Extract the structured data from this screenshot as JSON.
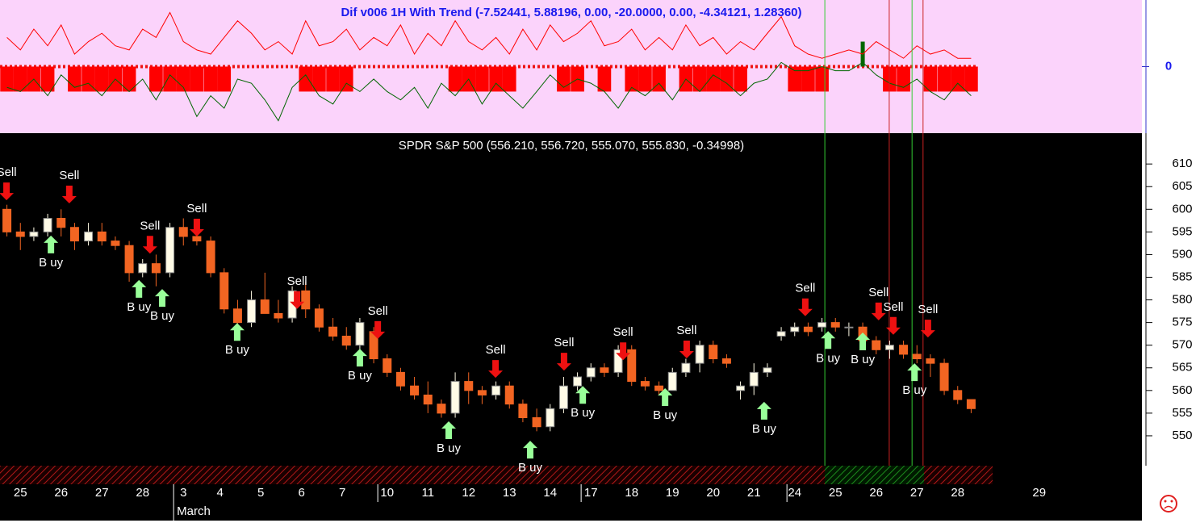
{
  "chart_data": [
    {
      "type": "indicator",
      "title": "Dif v006 1H With Trend (-7.52441, 5.88196, 0.00, -20.0000, 0.00, -4.34121, 1.28360)",
      "ylim": [
        -8,
        8
      ],
      "yticks": [
        0
      ],
      "xlim": [
        0,
        28.02
      ],
      "x": [
        0.17,
        0.5,
        0.83,
        1.17,
        1.5,
        1.83,
        2.17,
        2.5,
        2.83,
        3.17,
        3.5,
        3.83,
        4.17,
        4.5,
        4.83,
        5.17,
        5.5,
        5.83,
        6.17,
        6.5,
        6.83,
        7.17,
        7.5,
        7.83,
        8.17,
        8.5,
        8.83,
        9.17,
        9.5,
        9.83,
        10.17,
        10.5,
        10.83,
        11.17,
        11.5,
        11.83,
        12.17,
        12.5,
        12.83,
        13.17,
        13.5,
        13.83,
        14.17,
        14.5,
        14.83,
        15.17,
        15.5,
        15.83,
        16.17,
        16.5,
        16.83,
        17.17,
        17.5,
        17.83,
        18.17,
        18.5,
        18.83,
        19.17,
        19.5,
        19.83,
        20.17,
        20.5,
        20.83,
        21.17,
        21.5,
        21.83,
        22.17,
        22.5,
        22.83,
        23.17,
        23.5,
        23.83
      ],
      "trend": {
        "up_color": "#006600",
        "down_color": "#ff0000",
        "values": [
          -3,
          -3,
          -3,
          -3,
          0,
          -3,
          -3,
          -3,
          -3,
          -3,
          0,
          -3,
          -3,
          -3,
          -3,
          -3,
          -3,
          0,
          0,
          0,
          0,
          0,
          -3,
          -3,
          -3,
          -3,
          0,
          0,
          0,
          0,
          0,
          0,
          0,
          -3,
          -3,
          -3,
          -3,
          -3,
          0,
          0,
          0,
          -3,
          -3,
          0,
          -3,
          0,
          -3,
          -3,
          -3,
          0,
          -3,
          -3,
          -3,
          -3,
          -3,
          0,
          0,
          0,
          -3,
          -3,
          -3,
          0,
          0,
          3,
          0,
          -3,
          -3,
          0,
          -3,
          -3,
          -3,
          -3
        ]
      },
      "series": [
        {
          "color": "#ff0000",
          "values": [
            3.5,
            2.0,
            4.5,
            2.5,
            5.0,
            1.5,
            3.0,
            4.0,
            2.5,
            2.0,
            4.5,
            3.5,
            6.5,
            3.0,
            2.0,
            1.5,
            3.5,
            5.5,
            4.0,
            2.0,
            3.0,
            1.5,
            5.5,
            2.5,
            3.0,
            4.5,
            2.0,
            3.5,
            2.5,
            5.0,
            1.5,
            4.0,
            2.5,
            5.5,
            3.0,
            2.0,
            3.5,
            1.5,
            4.5,
            2.0,
            5.0,
            3.0,
            4.0,
            5.5,
            2.5,
            3.0,
            4.5,
            2.0,
            3.5,
            2.0,
            5.0,
            2.5,
            3.5,
            1.5,
            3.0,
            2.0,
            4.0,
            6.0,
            2.5,
            1.5,
            1.0,
            1.5,
            2.0,
            1.5,
            3.0,
            2.0,
            1.0,
            2.5,
            1.5,
            2.0,
            1.0,
            1.0
          ]
        },
        {
          "color": "#006600",
          "values": [
            -2.5,
            -3.0,
            -1.5,
            -3.5,
            -1.0,
            -2.5,
            -2.0,
            -3.5,
            -1.5,
            -3.0,
            -1.5,
            -4.0,
            -1.0,
            -2.5,
            -6.0,
            -3.5,
            -5.0,
            -1.5,
            -2.0,
            -4.0,
            -6.5,
            -2.5,
            -1.0,
            -3.5,
            -4.5,
            -2.0,
            -3.0,
            -1.5,
            -3.0,
            -4.0,
            -2.5,
            -5.0,
            -2.0,
            -3.5,
            -1.5,
            -4.5,
            -2.0,
            -3.5,
            -5.0,
            -3.0,
            -1.0,
            -2.5,
            -1.5,
            -2.0,
            -3.0,
            -5.0,
            -2.5,
            -3.5,
            -2.0,
            -4.0,
            -1.5,
            -3.0,
            -1.0,
            -2.0,
            -3.5,
            -2.0,
            -1.5,
            0.5,
            -0.5,
            -0.5,
            0.0,
            -0.5,
            -0.5,
            0.5,
            -1.0,
            -2.0,
            -2.5,
            -1.5,
            -3.0,
            -4.0,
            -2.0,
            -3.5
          ]
        }
      ]
    },
    {
      "type": "candlestick",
      "title": "SPDR S&P 500 (556.210, 556.720, 555.070, 555.830, -0.34998)",
      "ylim": [
        543.4,
        616.8
      ],
      "yticks": [
        550,
        555,
        560,
        565,
        570,
        575,
        580,
        585,
        590,
        595,
        600,
        605,
        610
      ],
      "xlim": [
        0,
        28.02
      ],
      "up_color": "#fffbe6",
      "down_color": "#f26522",
      "xticks": [
        {
          "value": 0.5,
          "label": "25"
        },
        {
          "value": 1.5,
          "label": "26"
        },
        {
          "value": 2.5,
          "label": "27"
        },
        {
          "value": 3.5,
          "label": "28"
        },
        {
          "value": 4.5,
          "label": "3"
        },
        {
          "value": 5.4,
          "label": "4"
        },
        {
          "value": 6.4,
          "label": "5"
        },
        {
          "value": 7.4,
          "label": "6"
        },
        {
          "value": 8.4,
          "label": "7"
        },
        {
          "value": 9.5,
          "label": "10"
        },
        {
          "value": 10.5,
          "label": "11"
        },
        {
          "value": 11.5,
          "label": "12"
        },
        {
          "value": 12.5,
          "label": "13"
        },
        {
          "value": 13.5,
          "label": "14"
        },
        {
          "value": 14.5,
          "label": "17"
        },
        {
          "value": 15.5,
          "label": "18"
        },
        {
          "value": 16.5,
          "label": "19"
        },
        {
          "value": 17.5,
          "label": "20"
        },
        {
          "value": 18.5,
          "label": "21"
        },
        {
          "value": 19.5,
          "label": "24"
        },
        {
          "value": 20.5,
          "label": "25"
        },
        {
          "value": 21.5,
          "label": "26"
        },
        {
          "value": 22.5,
          "label": "27"
        },
        {
          "value": 23.5,
          "label": "28"
        },
        {
          "value": 25.5,
          "label": "29"
        }
      ],
      "x_sublabels": [
        {
          "value": 4.26,
          "label": "March"
        }
      ],
      "separators": [
        4.26,
        9.27,
        14.26,
        19.31
      ],
      "candles": [
        [
          600,
          601,
          594,
          595
        ],
        [
          595,
          597,
          591,
          594
        ],
        [
          594,
          596,
          593,
          595
        ],
        [
          595,
          599,
          594,
          598
        ],
        [
          598,
          600,
          594,
          596
        ],
        [
          596,
          597,
          591,
          593
        ],
        [
          593,
          597,
          592,
          595
        ],
        [
          595,
          597,
          592,
          593
        ],
        [
          593,
          594,
          591,
          592
        ],
        [
          592,
          593,
          584,
          586
        ],
        [
          586,
          589,
          585,
          588
        ],
        [
          588,
          590,
          583,
          586
        ],
        [
          586,
          597,
          585,
          596
        ],
        [
          596,
          598,
          592,
          594
        ],
        [
          594,
          596,
          592,
          593
        ],
        [
          593,
          594,
          585,
          586
        ],
        [
          586,
          587,
          577,
          578
        ],
        [
          578,
          580,
          574,
          575
        ],
        [
          575,
          582,
          574,
          580
        ],
        [
          580,
          586,
          577,
          577
        ],
        [
          577,
          580,
          575,
          576
        ],
        [
          576,
          583,
          575,
          582
        ],
        [
          582,
          584,
          576,
          578
        ],
        [
          578,
          579,
          573,
          574
        ],
        [
          574,
          576,
          571,
          572
        ],
        [
          572,
          574,
          569,
          570
        ],
        [
          570,
          576,
          566,
          575
        ],
        [
          573,
          574,
          566,
          567
        ],
        [
          567,
          568,
          563,
          564
        ],
        [
          564,
          565,
          560,
          561
        ],
        [
          561,
          563,
          558,
          559
        ],
        [
          559,
          562,
          555,
          557
        ],
        [
          557,
          558,
          554,
          555
        ],
        [
          555,
          564,
          554,
          562
        ],
        [
          562,
          564,
          557,
          560
        ],
        [
          560,
          561,
          557,
          559
        ],
        [
          559,
          562,
          558,
          561
        ],
        [
          561,
          562,
          556,
          557
        ],
        [
          557,
          558,
          553,
          554
        ],
        [
          554,
          556,
          551,
          552
        ],
        [
          552,
          557,
          551,
          556
        ],
        [
          556,
          563,
          555,
          561
        ],
        [
          561,
          564,
          560,
          563
        ],
        [
          563,
          566,
          562,
          565
        ],
        [
          565,
          566,
          563,
          564
        ],
        [
          564,
          570,
          563,
          569
        ],
        [
          569,
          570,
          561,
          562
        ],
        [
          562,
          563,
          560,
          561
        ],
        [
          561,
          562,
          559,
          560
        ],
        [
          560,
          565,
          560,
          564
        ],
        [
          564,
          567,
          563,
          566
        ],
        [
          566,
          571,
          564,
          570
        ],
        [
          570,
          571,
          566,
          567
        ],
        [
          567,
          568,
          565,
          566
        ],
        [
          560,
          562,
          558,
          561
        ],
        [
          561,
          566,
          559,
          564
        ],
        [
          564,
          566,
          563,
          565
        ],
        [
          572,
          574,
          571,
          573
        ],
        [
          573,
          575,
          572,
          574
        ],
        [
          574,
          575,
          572,
          573
        ],
        [
          574,
          576,
          573,
          575
        ],
        [
          575,
          576,
          573,
          574
        ],
        [
          574,
          575,
          572,
          574
        ],
        [
          574,
          575,
          570,
          571
        ],
        [
          571,
          572,
          568,
          569
        ],
        [
          569,
          571,
          567,
          570
        ],
        [
          570,
          571,
          567,
          568
        ],
        [
          568,
          570,
          566,
          567
        ],
        [
          567,
          568,
          563,
          566
        ],
        [
          566,
          567,
          559,
          560
        ],
        [
          560,
          561,
          557,
          558
        ],
        [
          558,
          558,
          555,
          556
        ]
      ],
      "signals": [
        {
          "label": "Sell",
          "x": 0.16,
          "y": 602.0
        },
        {
          "label": "Sell",
          "x": 1.7,
          "y": 601.3
        },
        {
          "label": "Sell",
          "x": 3.68,
          "y": 590.2
        },
        {
          "label": "Sell",
          "x": 4.83,
          "y": 594.0
        },
        {
          "label": "Sell",
          "x": 7.29,
          "y": 578.0
        },
        {
          "label": "Sell",
          "x": 9.27,
          "y": 571.4
        },
        {
          "label": "Sell",
          "x": 12.16,
          "y": 562.8
        },
        {
          "label": "Sell",
          "x": 13.84,
          "y": 564.4
        },
        {
          "label": "Sell",
          "x": 15.29,
          "y": 566.7
        },
        {
          "label": "Sell",
          "x": 16.85,
          "y": 567.1
        },
        {
          "label": "Sell",
          "x": 19.76,
          "y": 576.4
        },
        {
          "label": "Sell",
          "x": 21.56,
          "y": 575.5
        },
        {
          "label": "Sell",
          "x": 21.92,
          "y": 572.3
        },
        {
          "label": "Sell",
          "x": 22.77,
          "y": 571.7
        },
        {
          "label": "B uy",
          "x": 1.25,
          "y": 594.2
        },
        {
          "label": "B uy",
          "x": 3.41,
          "y": 584.4
        },
        {
          "label": "B uy",
          "x": 3.98,
          "y": 582.4
        },
        {
          "label": "B uy",
          "x": 5.82,
          "y": 574.9
        },
        {
          "label": "B uy",
          "x": 8.83,
          "y": 569.2
        },
        {
          "label": "B uy",
          "x": 11.01,
          "y": 553.2
        },
        {
          "label": "B uy",
          "x": 13.01,
          "y": 548.9
        },
        {
          "label": "B uy",
          "x": 14.3,
          "y": 561.0
        },
        {
          "label": "B uy",
          "x": 16.32,
          "y": 560.5
        },
        {
          "label": "B uy",
          "x": 18.75,
          "y": 557.5
        },
        {
          "label": "B uy",
          "x": 20.32,
          "y": 573.1
        },
        {
          "label": "B uy",
          "x": 21.17,
          "y": 572.8
        },
        {
          "label": "B uy",
          "x": 22.44,
          "y": 566.0
        }
      ],
      "vertical_lines": [
        {
          "x": 20.24,
          "color": "#33cc33"
        },
        {
          "x": 22.38,
          "color": "#33cc33"
        },
        {
          "x": 21.82,
          "color": "#cc2222"
        },
        {
          "x": 22.65,
          "color": "#cc2222"
        }
      ]
    }
  ]
}
